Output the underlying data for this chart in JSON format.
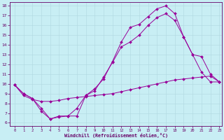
{
  "xlabel": "Windchill (Refroidissement éolien,°C)",
  "bg_color": "#c8eef4",
  "line_color": "#990099",
  "xlim": [
    -0.5,
    23.3
  ],
  "ylim": [
    5.7,
    18.4
  ],
  "xticks": [
    0,
    1,
    2,
    3,
    4,
    5,
    6,
    7,
    8,
    9,
    10,
    11,
    12,
    13,
    14,
    15,
    16,
    17,
    18,
    19,
    20,
    21,
    22,
    23
  ],
  "yticks": [
    6,
    7,
    8,
    9,
    10,
    11,
    12,
    13,
    14,
    15,
    16,
    17,
    18
  ],
  "line1_x": [
    0,
    1,
    2,
    3,
    4,
    5,
    6,
    7,
    8,
    9,
    10,
    11,
    12,
    13,
    14,
    15,
    16,
    17,
    18,
    19,
    20,
    21,
    22,
    23
  ],
  "line1_y": [
    9.9,
    9.0,
    8.5,
    7.2,
    6.4,
    6.6,
    6.7,
    6.7,
    8.8,
    9.5,
    10.5,
    12.3,
    14.3,
    15.8,
    16.1,
    16.9,
    17.7,
    18.0,
    17.2,
    14.8,
    13.0,
    11.2,
    10.2,
    10.2
  ],
  "line2_x": [
    0,
    1,
    2,
    3,
    4,
    5,
    6,
    7,
    8,
    9,
    10,
    11,
    12,
    13,
    14,
    15,
    16,
    17,
    18,
    19,
    20,
    21,
    22,
    23
  ],
  "line2_y": [
    9.9,
    9.0,
    8.5,
    7.5,
    6.4,
    6.7,
    6.7,
    7.5,
    8.8,
    9.3,
    10.7,
    12.2,
    13.8,
    14.3,
    15.0,
    16.0,
    16.8,
    17.2,
    16.5,
    14.8,
    13.0,
    12.8,
    11.0,
    10.2
  ],
  "line3_x": [
    0,
    1,
    2,
    3,
    4,
    5,
    6,
    7,
    8,
    9,
    10,
    11,
    12,
    13,
    14,
    15,
    16,
    17,
    18,
    19,
    20,
    21,
    22,
    23
  ],
  "line3_y": [
    9.9,
    8.8,
    8.4,
    8.2,
    8.2,
    8.3,
    8.5,
    8.6,
    8.7,
    8.8,
    8.9,
    9.0,
    9.2,
    9.4,
    9.6,
    9.8,
    10.0,
    10.2,
    10.4,
    10.5,
    10.6,
    10.7,
    10.8,
    10.2
  ]
}
